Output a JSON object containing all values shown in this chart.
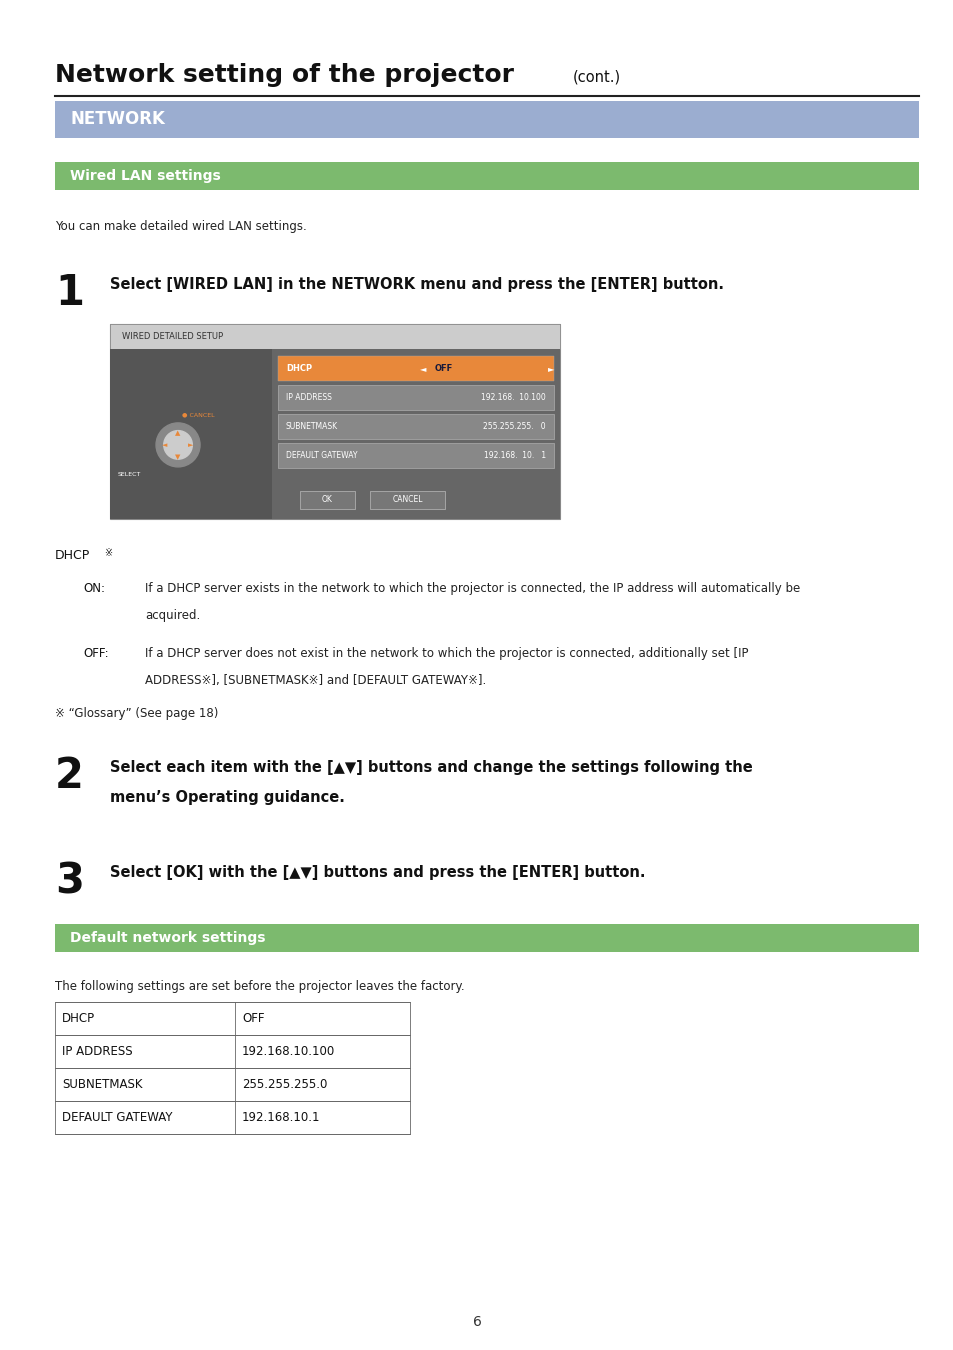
{
  "page_bg": "#ffffff",
  "title_bold": "Network setting of the projector",
  "title_normal": "(cont.)",
  "network_bar_color": "#9badd0",
  "network_bar_text": "NETWORK",
  "wired_bar_color": "#7cba6e",
  "wired_bar_text": "Wired LAN settings",
  "wired_intro": "You can make detailed wired LAN settings.",
  "step1_num": "1",
  "step1_text": "Select [WIRED LAN] in the NETWORK menu and press the [ENTER] button.",
  "step2_num": "2",
  "step2_text_line1": "Select each item with the [▲▼] buttons and change the settings following the",
  "step2_text_line2": "menu’s Operating guidance.",
  "step3_num": "3",
  "step3_text": "Select [OK] with the [▲▼] buttons and press the [ENTER] button.",
  "dhcp_label": "DHCP",
  "dhcp_super": "※",
  "on_label": "ON:",
  "on_text_line1": "If a DHCP server exists in the network to which the projector is connected, the IP address will automatically be",
  "on_text_line2": "acquired.",
  "off_label": "OFF:",
  "off_text_line1": "If a DHCP server does not exist in the network to which the projector is connected, additionally set [IP",
  "off_text_line2": "ADDRESS※], [SUBNETMASK※] and [DEFAULT GATEWAY※].",
  "glossary_note": "※ “Glossary” (See page 18)",
  "default_bar_color": "#7cba6e",
  "default_bar_text": "Default network settings",
  "default_intro": "The following settings are set before the projector leaves the factory.",
  "table_rows": [
    [
      "DHCP",
      "OFF"
    ],
    [
      "IP ADDRESS",
      "192.168.10.100"
    ],
    [
      "SUBNETMASK",
      "255.255.255.0"
    ],
    [
      "DEFAULT GATEWAY",
      "192.168.10.1"
    ]
  ],
  "page_number": "6",
  "ss_bg": "#555555",
  "ss_menu_bg": "#666666",
  "ss_dhcp_orange": "#e8883a",
  "ss_row_bg": "#808080",
  "ss_title_bg": "#e0e0e0",
  "ss_border": "#999999"
}
